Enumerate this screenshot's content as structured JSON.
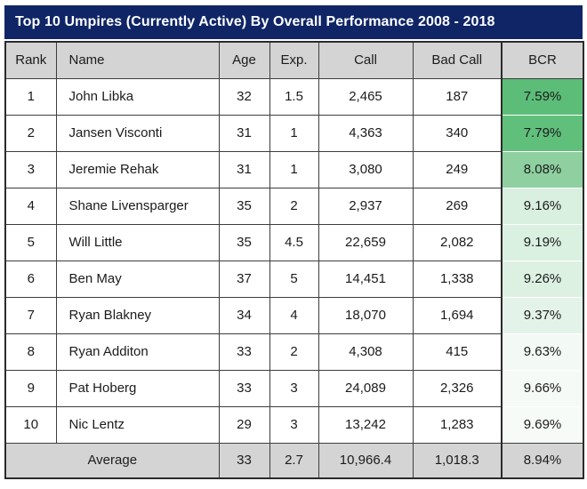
{
  "title": "Top 10 Umpires (Currently Active) By Overall Performance 2008 - 2018",
  "columns": [
    "Rank",
    "Name",
    "Age",
    "Exp.",
    "Call",
    "Bad Call",
    "BCR"
  ],
  "rows": [
    {
      "rank": "1",
      "name": "John Libka",
      "age": "32",
      "exp": "1.5",
      "call": "2,465",
      "bad_call": "187",
      "bcr": "7.59%",
      "bcr_bg": "#5cbd78"
    },
    {
      "rank": "2",
      "name": "Jansen Visconti",
      "age": "31",
      "exp": "1",
      "call": "4,363",
      "bad_call": "340",
      "bcr": "7.79%",
      "bcr_bg": "#61bf7c"
    },
    {
      "rank": "3",
      "name": "Jeremie Rehak",
      "age": "31",
      "exp": "1",
      "call": "3,080",
      "bad_call": "249",
      "bcr": "8.08%",
      "bcr_bg": "#8ed0a0"
    },
    {
      "rank": "4",
      "name": "Shane Livensparger",
      "age": "35",
      "exp": "2",
      "call": "2,937",
      "bad_call": "269",
      "bcr": "9.16%",
      "bcr_bg": "#d9efdf"
    },
    {
      "rank": "5",
      "name": "Will Little",
      "age": "35",
      "exp": "4.5",
      "call": "22,659",
      "bad_call": "2,082",
      "bcr": "9.19%",
      "bcr_bg": "#daf0e0"
    },
    {
      "rank": "6",
      "name": "Ben May",
      "age": "37",
      "exp": "5",
      "call": "14,451",
      "bad_call": "1,338",
      "bcr": "9.26%",
      "bcr_bg": "#ddf1e3"
    },
    {
      "rank": "7",
      "name": "Ryan Blakney",
      "age": "34",
      "exp": "4",
      "call": "18,070",
      "bad_call": "1,694",
      "bcr": "9.37%",
      "bcr_bg": "#e4f3e9"
    },
    {
      "rank": "8",
      "name": "Ryan Additon",
      "age": "33",
      "exp": "2",
      "call": "4,308",
      "bad_call": "415",
      "bcr": "9.63%",
      "bcr_bg": "#f3f9f4"
    },
    {
      "rank": "9",
      "name": "Pat Hoberg",
      "age": "33",
      "exp": "3",
      "call": "24,089",
      "bad_call": "2,326",
      "bcr": "9.66%",
      "bcr_bg": "#f5faf6"
    },
    {
      "rank": "10",
      "name": "Nic Lentz",
      "age": "29",
      "exp": "3",
      "call": "13,242",
      "bad_call": "1,283",
      "bcr": "9.69%",
      "bcr_bg": "#f6fbf7"
    }
  ],
  "average": {
    "label": "Average",
    "age": "33",
    "exp": "2.7",
    "call": "10,966.4",
    "bad_call": "1,018.3",
    "bcr": "8.94%"
  },
  "colors": {
    "title_bg": "#0f2566",
    "title_text": "#ffffff",
    "header_bg": "#d4d4d4",
    "average_bg": "#d4d4d4",
    "grid_border": "#3d3d3d",
    "outer_border": "#2b2b2b"
  }
}
